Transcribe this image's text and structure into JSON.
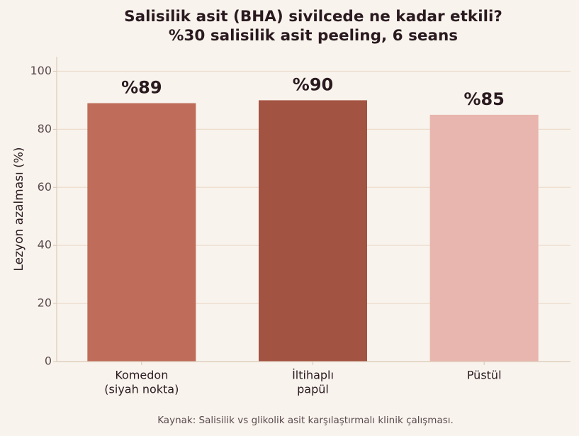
{
  "chart_data": {
    "type": "bar",
    "title": "Salisilik asit (BHA) sivilcede ne kadar etkili?",
    "subtitle": "%30 salisilik asit peeling, 6 seans",
    "ylabel": "Lezyon azalması (%)",
    "ylim": [
      0,
      105
    ],
    "yticks": [
      0,
      20,
      40,
      60,
      80,
      100
    ],
    "grid": true,
    "categories": [
      [
        "Komedon",
        "(siyah nokta)"
      ],
      [
        "İltihaplı",
        "papül"
      ],
      [
        "Püstül"
      ]
    ],
    "values": [
      89,
      90,
      85
    ],
    "data_labels": [
      "%89",
      "%90",
      "%85"
    ],
    "colors": [
      "#bf6c5a",
      "#a35341",
      "#e8b6ae"
    ]
  },
  "footer": {
    "source": "Kaynak: Salisilik vs glikolik asit karşılaştırmalı klinik çalışması."
  }
}
